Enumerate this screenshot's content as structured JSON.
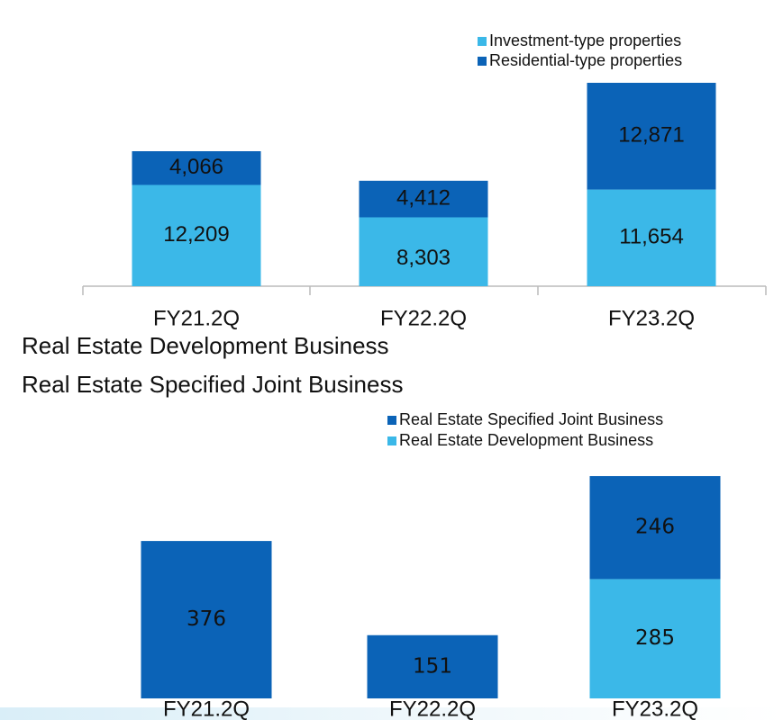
{
  "headings": [
    "Real Estate Development Business",
    "Real Estate Specified Joint Business"
  ],
  "chart_data": [
    {
      "type": "stacked_bar",
      "categories": [
        "FY21.2Q",
        "FY22.2Q",
        "FY23.2Q"
      ],
      "series": [
        {
          "name": "Investment-type properties",
          "color": "#3bb8e8",
          "values": [
            12209,
            8303,
            11654
          ],
          "value_labels": [
            "12,209",
            "8,303",
            "11,654"
          ]
        },
        {
          "name": "Residential-type properties",
          "color": "#0b63b7",
          "values": [
            4066,
            4412,
            12871
          ],
          "value_labels": [
            "4,066",
            "4,412",
            "12,871"
          ]
        }
      ]
    },
    {
      "type": "stacked_bar",
      "categories": [
        "FY21.2Q",
        "FY22.2Q",
        "FY23.2Q"
      ],
      "series": [
        {
          "name": "Real Estate Specified Joint Business",
          "color": "#0b63b7",
          "values": [
            376,
            151,
            246
          ]
        },
        {
          "name": "Real Estate Development Business",
          "color": "#3bb8e8",
          "values": [
            null,
            null,
            285
          ]
        }
      ]
    }
  ]
}
